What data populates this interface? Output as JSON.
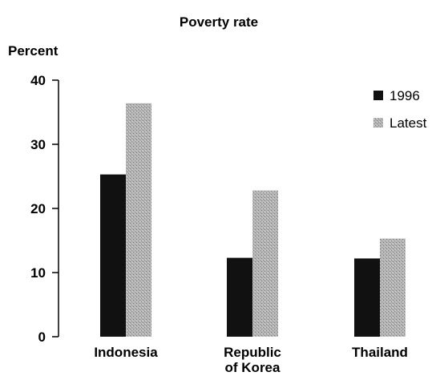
{
  "chart_data": {
    "type": "bar",
    "title": "Poverty rate",
    "ylabel": "Percent",
    "xlabel": "",
    "ylim": [
      0,
      40
    ],
    "yticks": [
      "0",
      "10",
      "20",
      "30",
      "40"
    ],
    "categories": [
      [
        "Indonesia"
      ],
      [
        "Republic",
        "of Korea"
      ],
      [
        "Thailand"
      ]
    ],
    "series": [
      {
        "name": "1996",
        "values": [
          25.3,
          12.3,
          12.2
        ],
        "color": "#111111"
      },
      {
        "name": "Latest",
        "values": [
          36.4,
          22.8,
          15.3
        ],
        "color": "#a8a8a8"
      }
    ],
    "legend_position": "top-right",
    "grid": false
  }
}
